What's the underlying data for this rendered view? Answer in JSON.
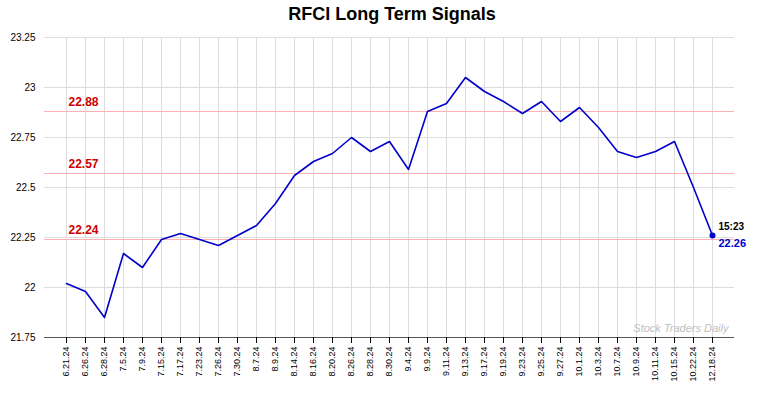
{
  "chart_data": {
    "type": "line",
    "title": "RFCI Long Term Signals",
    "categories": [
      "6.21.24",
      "6.26.24",
      "6.28.24",
      "7.5.24",
      "7.9.24",
      "7.15.24",
      "7.17.24",
      "7.23.24",
      "7.26.24",
      "7.30.24",
      "8.7.24",
      "8.9.24",
      "8.14.24",
      "8.16.24",
      "8.20.24",
      "8.26.24",
      "8.28.24",
      "8.30.24",
      "9.4.24",
      "9.9.24",
      "9.11.24",
      "9.13.24",
      "9.17.24",
      "9.19.24",
      "9.23.24",
      "9.25.24",
      "9.27.24",
      "10.1.24",
      "10.3.24",
      "10.7.24",
      "10.9.24",
      "10.11.24",
      "10.15.24",
      "10.22.24",
      "12.18.24"
    ],
    "values": [
      22.02,
      21.98,
      21.85,
      22.17,
      22.1,
      22.24,
      22.27,
      22.24,
      22.21,
      22.26,
      22.31,
      22.42,
      22.56,
      22.63,
      22.67,
      22.75,
      22.68,
      22.73,
      22.59,
      22.88,
      22.92,
      23.05,
      22.98,
      22.93,
      22.87,
      22.93,
      22.83,
      22.9,
      22.8,
      22.68,
      22.65,
      22.68,
      22.73,
      22.5,
      22.26
    ],
    "color": "#0000cc",
    "ylim": [
      21.75,
      23.25
    ],
    "yticks": [
      21.75,
      22,
      22.25,
      22.5,
      22.75,
      23,
      23.25
    ],
    "grid": true,
    "signal_lines": {
      "values": [
        22.88,
        22.57,
        22.24
      ],
      "labels": [
        "22.88",
        "22.57",
        "22.24"
      ],
      "color": "#ffb0b0",
      "label_color": "#cc0000"
    },
    "last_label": {
      "time": "15:23",
      "value": 22.26,
      "label": "22.26",
      "color": "#0000cc"
    },
    "watermark": {
      "text": "Stock Traders Daily",
      "color": "#c0c0c0"
    }
  }
}
